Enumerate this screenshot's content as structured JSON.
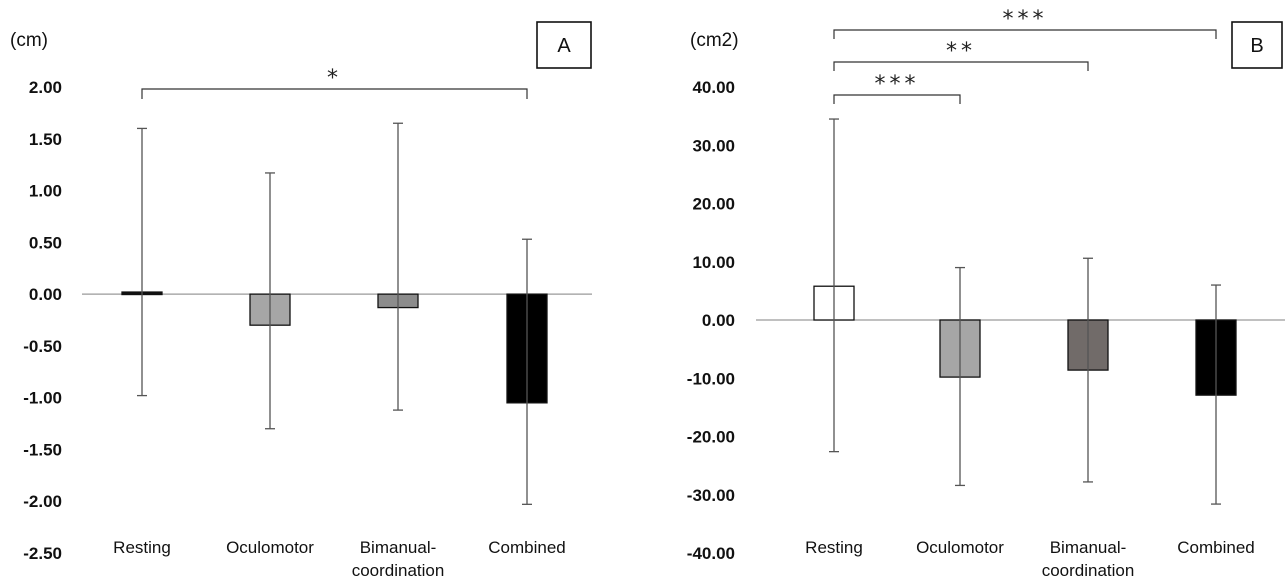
{
  "chart_data": [
    {
      "type": "bar",
      "panel_label": "A",
      "unit_label": "(cm)",
      "categories": [
        "Resting",
        "Oculomotor",
        "Bimanual-\ncoordination",
        "Combined"
      ],
      "values": [
        0.02,
        -0.3,
        -0.13,
        -1.05
      ],
      "error_upper": [
        1.6,
        1.17,
        1.65,
        0.53
      ],
      "error_lower": [
        -0.98,
        -1.3,
        -1.12,
        -2.03
      ],
      "bar_colors": [
        "#111111",
        "#a6a6a6",
        "#8c8c8c",
        "#000000"
      ],
      "ylim": [
        -2.5,
        2.0
      ],
      "yticks": [
        "2.00",
        "1.50",
        "1.00",
        "0.50",
        "0.00",
        "-0.50",
        "-1.00",
        "-1.50",
        "-2.00",
        "-2.50"
      ],
      "significance": [
        {
          "from": 0,
          "to": 3,
          "label": "*"
        }
      ]
    },
    {
      "type": "bar",
      "panel_label": "B",
      "unit_label": "(cm2)",
      "categories": [
        "Resting",
        "Oculomotor",
        "Bimanual-\ncoordination",
        "Combined"
      ],
      "values": [
        5.8,
        -9.8,
        -8.6,
        -12.9
      ],
      "error_upper": [
        34.5,
        9.0,
        10.6,
        6.0
      ],
      "error_lower": [
        -22.6,
        -28.4,
        -27.8,
        -31.6
      ],
      "bar_colors": [
        "#ffffff",
        "#a6a6a6",
        "#716b69",
        "#000000"
      ],
      "ylim": [
        -40,
        40
      ],
      "yticks": [
        "40.00",
        "30.00",
        "20.00",
        "10.00",
        "0.00",
        "-10.00",
        "-20.00",
        "-30.00",
        "-40.00"
      ],
      "significance": [
        {
          "from": 0,
          "to": 1,
          "label": "***"
        },
        {
          "from": 0,
          "to": 2,
          "label": "**"
        },
        {
          "from": 0,
          "to": 3,
          "label": "***"
        }
      ]
    }
  ]
}
